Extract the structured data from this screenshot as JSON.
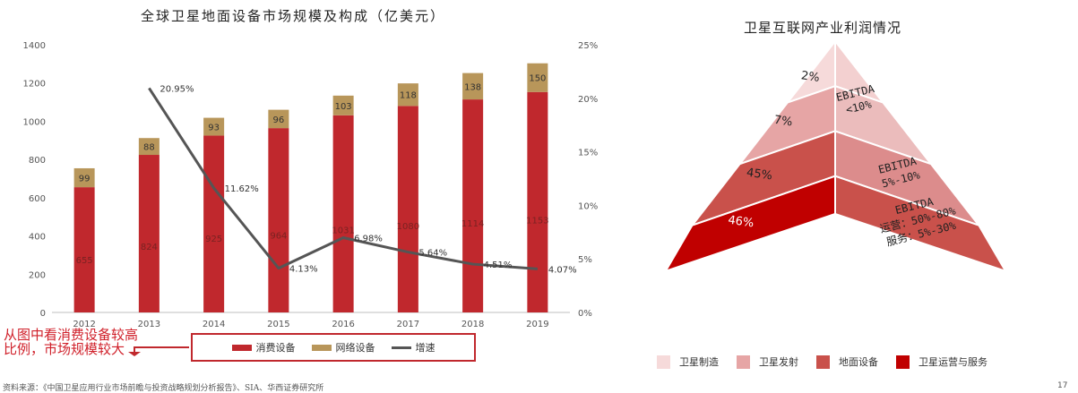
{
  "left_chart": {
    "title": "全球卫星地面设备市场规模及构成（亿美元）",
    "legend": {
      "consumer": "消费设备",
      "network": "网络设备",
      "growth": "增速"
    }
  },
  "chart_data": [
    {
      "type": "bar",
      "stacked": true,
      "title": "全球卫星地面设备市场规模及构成（亿美元）",
      "categories": [
        "2012",
        "2013",
        "2014",
        "2015",
        "2016",
        "2017",
        "2018",
        "2019"
      ],
      "series": [
        {
          "name": "消费设备",
          "color": "#c0282d",
          "values": [
            655,
            824,
            925,
            964,
            1031,
            1080,
            1114,
            1153
          ],
          "labels": [
            "655",
            "824",
            "925",
            "964",
            "1031",
            "1080",
            "1114",
            "1153"
          ]
        },
        {
          "name": "网络设备",
          "color": "#b8965a",
          "values": [
            99,
            88,
            93,
            96,
            103,
            118,
            138,
            150
          ],
          "labels": [
            "99",
            "88",
            "93",
            "96",
            "103",
            "118",
            "138",
            "150"
          ]
        }
      ],
      "line_series": {
        "name": "增速",
        "axis": "right",
        "color": "#555555",
        "x": [
          "2013",
          "2014",
          "2015",
          "2016",
          "2017",
          "2018",
          "2019"
        ],
        "values": [
          20.95,
          11.62,
          4.13,
          6.98,
          5.64,
          4.51,
          4.07
        ],
        "labels": [
          "20.95%",
          "11.62%",
          "4.13%",
          "6.98%",
          "5.64%",
          "4.51%",
          "4.07%"
        ]
      },
      "ylim": [
        0,
        1400
      ],
      "y_ticks": [
        "0",
        "200",
        "400",
        "600",
        "800",
        "1000",
        "1200",
        "1400"
      ],
      "y2lim": [
        0,
        25
      ],
      "y2_ticks": [
        "0%",
        "5%",
        "10%",
        "15%",
        "20%",
        "25%"
      ],
      "grid": false,
      "legend_position": "bottom"
    },
    {
      "type": "pyramid",
      "title": "卫星互联网产业利润情况",
      "levels": [
        {
          "name": "卫星制造",
          "share": 2,
          "label": "2%",
          "color": "#f6dada"
        },
        {
          "name": "卫星发射",
          "share": 7,
          "label": "7%",
          "color": "#e6a5a5"
        },
        {
          "name": "地面设备",
          "share": 45,
          "label": "45%",
          "color": "#c9514b"
        },
        {
          "name": "卫星运营与服务",
          "share": 46,
          "label": "46%",
          "color": "#c00000"
        }
      ],
      "ebitda_notes": [
        {
          "lines": [
            "EBITDA",
            "<10%"
          ]
        },
        {
          "lines": [
            "EBITDA",
            "5%-10%"
          ]
        },
        {
          "lines": [
            "EBITDA",
            "运营：50%-80%",
            "服务：5%-30%"
          ]
        }
      ],
      "legend_position": "bottom"
    }
  ],
  "annotation": "从图中看消费设备较高比例，市场规模较大",
  "source": "资料来源：《中国卫星应用行业市场前瞻与投资战略规划分析报告》、SIA、华西证券研究所",
  "page_number": "17"
}
